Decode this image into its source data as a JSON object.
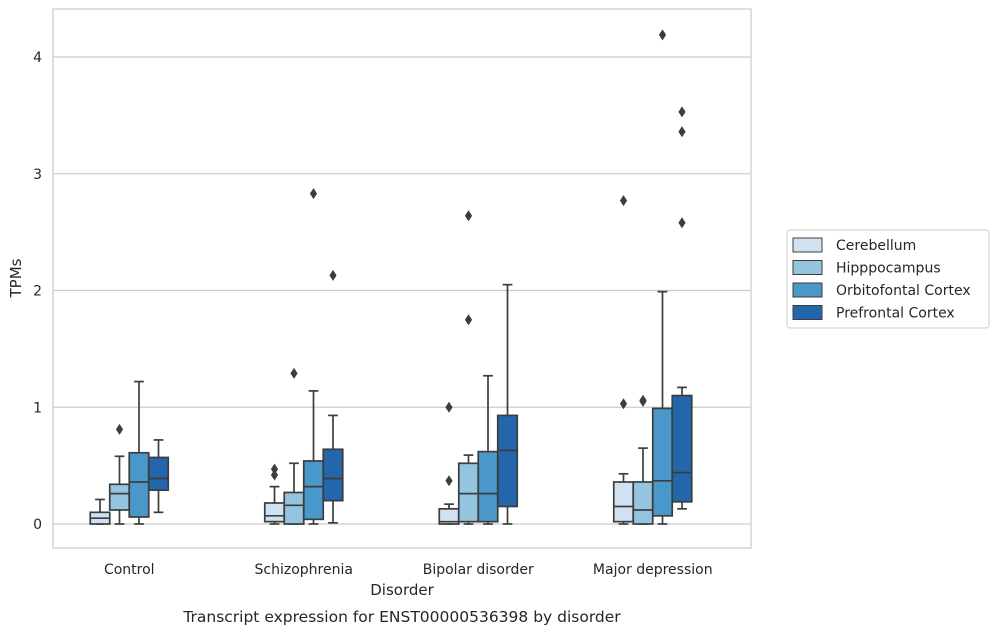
{
  "chart_data": {
    "type": "box",
    "title": "",
    "caption": "Transcript expression for ENST00000536398 by disorder",
    "xlabel": "Disorder",
    "ylabel": "TPMs",
    "ylim": [
      -0.2,
      4.4
    ],
    "yticks": [
      0,
      1,
      2,
      3,
      4
    ],
    "grid": "horizontal",
    "legend_position": "right",
    "categories": [
      "Control",
      "Schizophrenia",
      "Bipolar disorder",
      "Major depression"
    ],
    "series": [
      {
        "name": "Cerebellum",
        "color": "#d0e1f2",
        "boxes": [
          {
            "whislo": 0.0,
            "q1": 0.0,
            "med": 0.05,
            "q3": 0.1,
            "whishi": 0.21,
            "fliers": []
          },
          {
            "whislo": 0.0,
            "q1": 0.02,
            "med": 0.07,
            "q3": 0.18,
            "whishi": 0.32,
            "fliers": [
              0.42,
              0.47
            ]
          },
          {
            "whislo": 0.0,
            "q1": 0.0,
            "med": 0.02,
            "q3": 0.13,
            "whishi": 0.17,
            "fliers": [
              0.37,
              1.0
            ]
          },
          {
            "whislo": 0.0,
            "q1": 0.02,
            "med": 0.15,
            "q3": 0.36,
            "whishi": 0.43,
            "fliers": [
              1.03,
              2.77
            ]
          }
        ]
      },
      {
        "name": "Hipppocampus",
        "color": "#94c4df",
        "boxes": [
          {
            "whislo": 0.0,
            "q1": 0.12,
            "med": 0.26,
            "q3": 0.34,
            "whishi": 0.58,
            "fliers": [
              0.81
            ]
          },
          {
            "whislo": 0.0,
            "q1": 0.0,
            "med": 0.16,
            "q3": 0.27,
            "whishi": 0.52,
            "fliers": [
              1.29
            ]
          },
          {
            "whislo": 0.0,
            "q1": 0.02,
            "med": 0.26,
            "q3": 0.52,
            "whishi": 0.59,
            "fliers": [
              1.75,
              2.64
            ]
          },
          {
            "whislo": 0.0,
            "q1": 0.0,
            "med": 0.12,
            "q3": 0.36,
            "whishi": 0.65,
            "fliers": [
              1.05,
              1.06
            ]
          }
        ]
      },
      {
        "name": "Orbitofontal Cortex",
        "color": "#4a98c9",
        "boxes": [
          {
            "whislo": 0.0,
            "q1": 0.06,
            "med": 0.36,
            "q3": 0.61,
            "whishi": 1.22,
            "fliers": []
          },
          {
            "whislo": 0.0,
            "q1": 0.04,
            "med": 0.32,
            "q3": 0.54,
            "whishi": 1.14,
            "fliers": [
              2.83
            ]
          },
          {
            "whislo": 0.0,
            "q1": 0.02,
            "med": 0.26,
            "q3": 0.62,
            "whishi": 1.27,
            "fliers": []
          },
          {
            "whislo": 0.0,
            "q1": 0.07,
            "med": 0.37,
            "q3": 0.99,
            "whishi": 1.99,
            "fliers": [
              4.19
            ]
          }
        ]
      },
      {
        "name": "Prefrontal Cortex",
        "color": "#2366ac",
        "boxes": [
          {
            "whislo": 0.1,
            "q1": 0.29,
            "med": 0.39,
            "q3": 0.57,
            "whishi": 0.72,
            "fliers": []
          },
          {
            "whislo": 0.01,
            "q1": 0.2,
            "med": 0.39,
            "q3": 0.64,
            "whishi": 0.93,
            "fliers": [
              2.13
            ]
          },
          {
            "whislo": 0.0,
            "q1": 0.15,
            "med": 0.63,
            "q3": 0.93,
            "whishi": 2.05,
            "fliers": []
          },
          {
            "whislo": 0.13,
            "q1": 0.19,
            "med": 0.44,
            "q3": 1.1,
            "whishi": 1.17,
            "fliers": [
              2.58,
              3.36,
              3.53
            ]
          }
        ]
      }
    ]
  }
}
